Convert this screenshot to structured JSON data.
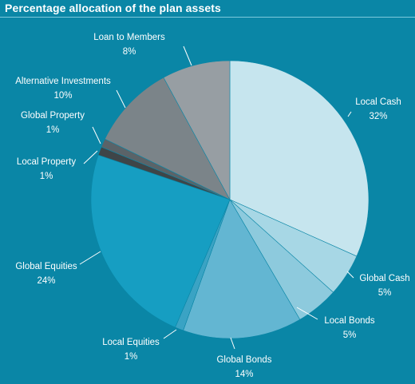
{
  "title": "Percentage allocation of the plan assets",
  "chart_data": {
    "type": "pie",
    "title": "Percentage allocation of the plan assets",
    "slices": [
      {
        "label": "Local Cash",
        "percent_text": "32%",
        "value": 32,
        "color": "#c6e5ee"
      },
      {
        "label": "Global Cash",
        "percent_text": "5%",
        "value": 5,
        "color": "#a7d7e5"
      },
      {
        "label": "Local Bonds",
        "percent_text": "5%",
        "value": 5,
        "color": "#8dcadd"
      },
      {
        "label": "Global Bonds",
        "percent_text": "14%",
        "value": 14,
        "color": "#63b6d2"
      },
      {
        "label": "Local Equities",
        "percent_text": "1%",
        "value": 1,
        "color": "#3aa3c4"
      },
      {
        "label": "Global Equities",
        "percent_text": "24%",
        "value": 24,
        "color": "#169ec2"
      },
      {
        "label": "Local Property",
        "percent_text": "1%",
        "value": 1,
        "color": "#3e4548"
      },
      {
        "label": "Global Property",
        "percent_text": "1%",
        "value": 1,
        "color": "#5a6368"
      },
      {
        "label": "Alternative Investments",
        "percent_text": "10%",
        "value": 10,
        "color": "#7b8489"
      },
      {
        "label": "Loan to Members",
        "percent_text": "8%",
        "value": 8,
        "color": "#979ea3"
      }
    ]
  }
}
